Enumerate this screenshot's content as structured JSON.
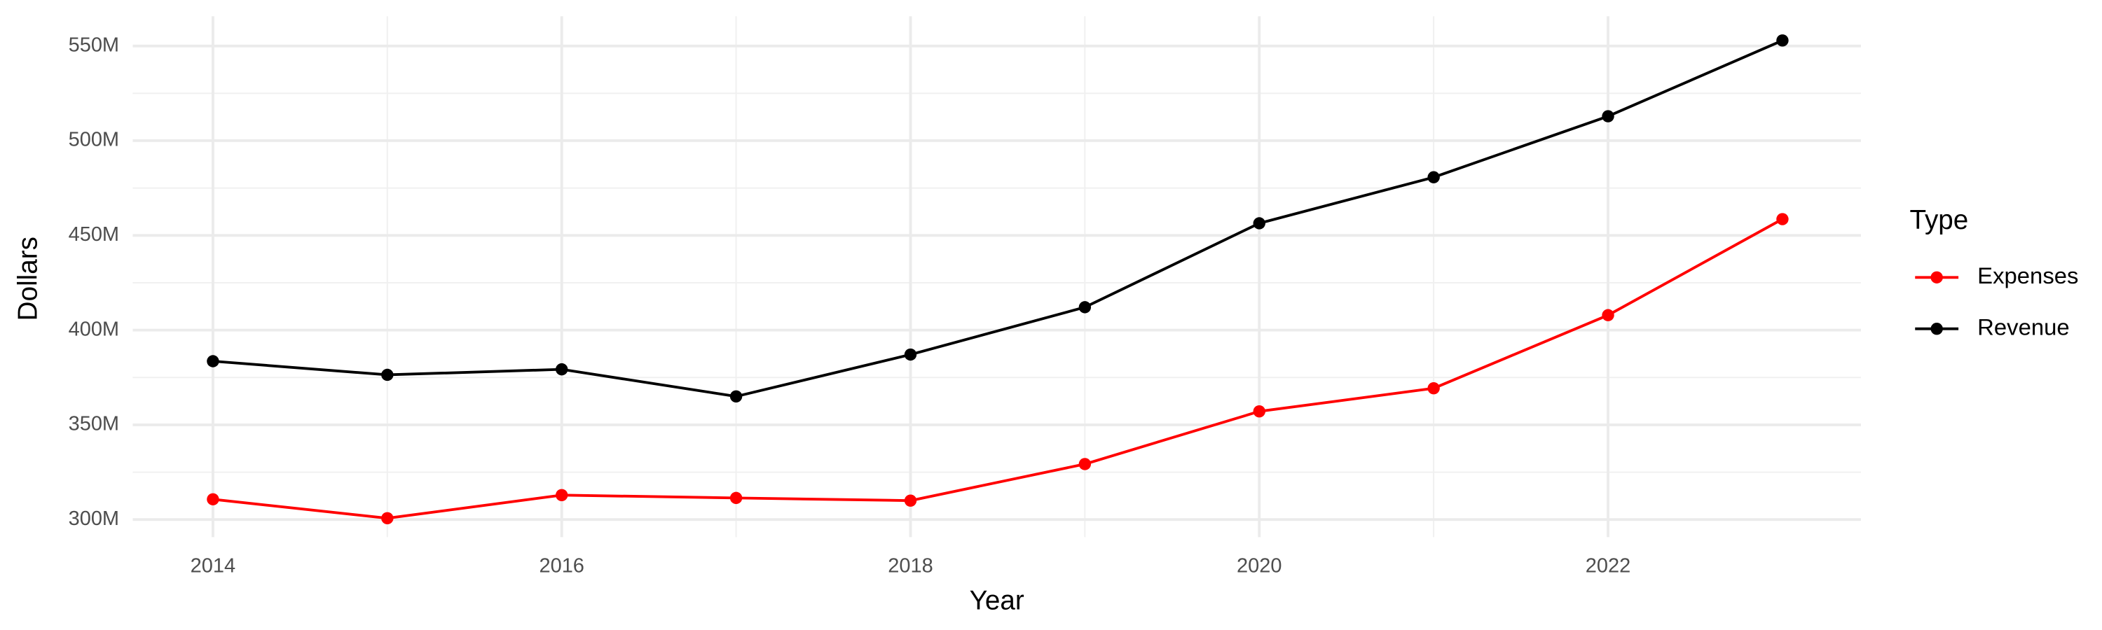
{
  "chart_data": {
    "type": "line",
    "x_label": "Year",
    "y_label": "Dollars",
    "legend_title": "Type",
    "legend_position": "right",
    "grid": true,
    "x": [
      2014,
      2015,
      2016,
      2017,
      2018,
      2019,
      2020,
      2021,
      2022,
      2023
    ],
    "series": [
      {
        "name": "Expenses",
        "color": "#ff0000",
        "values": [
          310700000,
          300700000,
          312900000,
          311400000,
          310000000,
          329300000,
          357100000,
          369300000,
          407900000,
          458600000
        ]
      },
      {
        "name": "Revenue",
        "color": "#000000",
        "values": [
          383600000,
          376400000,
          379300000,
          365000000,
          387100000,
          412100000,
          456400000,
          480700000,
          512900000,
          552900000
        ]
      }
    ],
    "xlim": [
      2013.54,
      2023.45
    ],
    "xticks": [
      2014,
      2016,
      2018,
      2020,
      2022
    ],
    "ylim": [
      290700000,
      565700000
    ],
    "yticks": [
      {
        "value": 300000000,
        "label": "300M"
      },
      {
        "value": 350000000,
        "label": "350M"
      },
      {
        "value": 400000000,
        "label": "400M"
      },
      {
        "value": 450000000,
        "label": "450M"
      },
      {
        "value": 500000000,
        "label": "500M"
      },
      {
        "value": 550000000,
        "label": "550M"
      }
    ]
  }
}
